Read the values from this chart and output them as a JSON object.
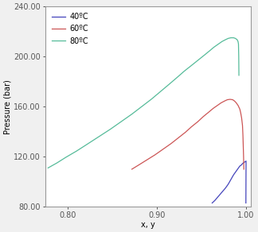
{
  "title": "",
  "xlabel": "x, y",
  "ylabel": "Pressure (bar)",
  "xlim": [
    0.775,
    1.005
  ],
  "ylim": [
    80.0,
    240.0
  ],
  "xticks": [
    0.8,
    0.9,
    1.0
  ],
  "yticks": [
    80.0,
    120.0,
    160.0,
    200.0,
    240.0
  ],
  "legend": [
    "40ºC",
    "60ºC",
    "80ºC"
  ],
  "colors": [
    "#4444bb",
    "#cc5555",
    "#55bb99"
  ],
  "bg_color": "#f0f0f0",
  "plot_bg": "#ffffff",
  "curves": {
    "T40": {
      "x": [
        0.962,
        0.965,
        0.968,
        0.971,
        0.974,
        0.977,
        0.98,
        0.982,
        0.984,
        0.986,
        0.988,
        0.99,
        0.991,
        0.992,
        0.993,
        0.994,
        0.995,
        0.996,
        0.997,
        0.998,
        0.999,
        1.0,
        0.9998
      ],
      "y": [
        83.0,
        85.0,
        87.5,
        90.0,
        92.5,
        95.0,
        98.0,
        100.5,
        103.0,
        105.5,
        107.5,
        109.5,
        110.5,
        111.5,
        112.5,
        113.0,
        113.5,
        114.5,
        115.0,
        115.5,
        116.0,
        116.5,
        83.0
      ]
    },
    "T60": {
      "x": [
        0.872,
        0.88,
        0.889,
        0.898,
        0.907,
        0.916,
        0.924,
        0.932,
        0.939,
        0.946,
        0.952,
        0.958,
        0.963,
        0.968,
        0.972,
        0.976,
        0.979,
        0.982,
        0.985,
        0.987,
        0.989,
        0.991,
        0.993,
        0.994,
        0.995,
        0.996,
        0.9965,
        0.9968,
        0.9972,
        0.9975
      ],
      "y": [
        110.0,
        113.5,
        117.5,
        121.5,
        126.0,
        130.5,
        135.0,
        139.5,
        144.0,
        148.0,
        152.0,
        155.5,
        158.5,
        161.0,
        163.0,
        164.5,
        165.5,
        165.8,
        165.5,
        164.5,
        163.0,
        161.0,
        158.0,
        155.0,
        151.0,
        145.0,
        137.0,
        130.0,
        120.0,
        110.0
      ]
    },
    "T80": {
      "x": [
        0.778,
        0.788,
        0.798,
        0.81,
        0.822,
        0.835,
        0.848,
        0.86,
        0.872,
        0.883,
        0.894,
        0.904,
        0.914,
        0.923,
        0.931,
        0.939,
        0.946,
        0.953,
        0.959,
        0.964,
        0.969,
        0.973,
        0.977,
        0.98,
        0.983,
        0.986,
        0.988,
        0.99,
        0.991,
        0.9915,
        0.9918,
        0.992
      ],
      "y": [
        111.0,
        115.0,
        119.5,
        124.5,
        130.0,
        136.0,
        142.0,
        148.0,
        154.0,
        160.0,
        166.0,
        172.0,
        178.0,
        183.5,
        188.5,
        193.0,
        197.0,
        201.0,
        204.5,
        207.5,
        210.0,
        212.0,
        213.5,
        214.5,
        215.0,
        215.0,
        214.5,
        213.5,
        212.0,
        210.0,
        200.0,
        185.0
      ]
    }
  }
}
